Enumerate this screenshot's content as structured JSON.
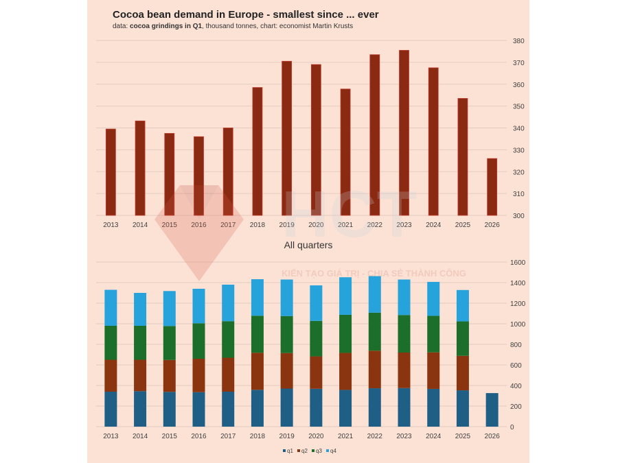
{
  "title": "Cocoa bean demand in Europe - smallest since ... ever",
  "subtitle": {
    "prefix": "data: ",
    "bold": "cocoa grindings in Q1",
    "suffix": ", thousand tonnes, chart: economist Martin Krusts"
  },
  "watermark": {
    "logo_text": "HCT",
    "tagline": "KIẾN TẠO GIÁ TRỊ - CHIA SẺ THÀNH CÔNG"
  },
  "colors": {
    "panel": "#fbe2d5",
    "q1_bar": "#8b2a12",
    "q1_bar_outline": "#c0392b",
    "q1": "#1f5f86",
    "q2": "#8b3510",
    "q3": "#1c6f2a",
    "q4": "#27a3dc",
    "grid": "#e3cbbf"
  },
  "chart_data": [
    {
      "type": "bar",
      "title": "",
      "categories": [
        "2013",
        "2014",
        "2015",
        "2016",
        "2017",
        "2018",
        "2019",
        "2020",
        "2021",
        "2022",
        "2023",
        "2024",
        "2025",
        "2026"
      ],
      "values": [
        339.5,
        343.2,
        337.5,
        336,
        340,
        358.5,
        370.5,
        369,
        357.8,
        373.5,
        375.5,
        367.5,
        353.5,
        326
      ],
      "ylim": [
        300,
        380
      ],
      "yticks": [
        300,
        310,
        320,
        330,
        340,
        350,
        360,
        370,
        380
      ],
      "xlabel": "",
      "ylabel": "",
      "grid": true
    },
    {
      "type": "bar",
      "stacked": true,
      "title": "All quarters",
      "categories": [
        "2013",
        "2014",
        "2015",
        "2016",
        "2017",
        "2018",
        "2019",
        "2020",
        "2021",
        "2022",
        "2023",
        "2024",
        "2025",
        "2026"
      ],
      "series": [
        {
          "name": "q1",
          "values": [
            340,
            345,
            338,
            335,
            340,
            358,
            370,
            368,
            357,
            373,
            375,
            367,
            353,
            326
          ]
        },
        {
          "name": "q2",
          "values": [
            310,
            305,
            310,
            325,
            330,
            360,
            345,
            315,
            360,
            365,
            345,
            355,
            335,
            0
          ]
        },
        {
          "name": "q3",
          "values": [
            330,
            330,
            330,
            345,
            355,
            360,
            360,
            345,
            370,
            370,
            365,
            355,
            335,
            0
          ]
        },
        {
          "name": "q4",
          "values": [
            350,
            320,
            340,
            335,
            355,
            355,
            355,
            345,
            365,
            355,
            345,
            330,
            305,
            0
          ]
        }
      ],
      "ylim": [
        0,
        1600
      ],
      "yticks": [
        0,
        200,
        400,
        600,
        800,
        1000,
        1200,
        1400,
        1600
      ],
      "legend": "bottom-center",
      "xlabel": "",
      "ylabel": "",
      "grid": true
    }
  ]
}
